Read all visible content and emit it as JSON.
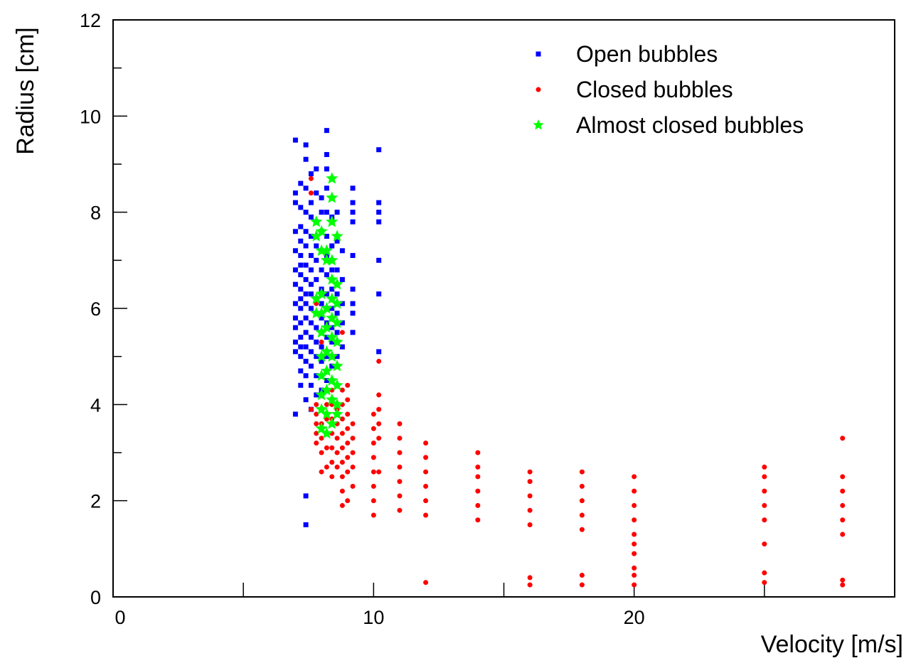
{
  "chart_data": {
    "type": "scatter",
    "title": "",
    "xlabel": "Velocity [m/s]",
    "ylabel": "Radius [cm]",
    "xlim": [
      0,
      30
    ],
    "ylim": [
      0,
      12
    ],
    "x_ticks_major": [
      0,
      10,
      20
    ],
    "x_ticks_minor": [
      5,
      15,
      25
    ],
    "y_ticks_major": [
      0,
      2,
      4,
      6,
      8,
      10,
      12
    ],
    "y_ticks_minor": [
      3,
      5,
      7,
      9,
      11
    ],
    "grid": false,
    "legend_position": "top-right",
    "series": [
      {
        "name": "Open bubbles",
        "marker": "square",
        "color": "#0000ff",
        "x_groups": [
          {
            "x": 7.0,
            "y": [
              3.8,
              5.1,
              5.3,
              5.6,
              5.8,
              6.1,
              6.5,
              6.8,
              7.2,
              7.6,
              8.2,
              8.4,
              9.5
            ]
          },
          {
            "x": 7.2,
            "y": [
              4.4,
              4.7,
              5.0,
              5.2,
              5.4,
              5.7,
              6.0,
              6.2,
              6.4,
              6.7,
              6.9,
              7.1,
              7.4,
              7.7,
              8.1,
              8.6
            ]
          },
          {
            "x": 7.4,
            "y": [
              1.5,
              2.1,
              4.1,
              4.6,
              4.9,
              5.2,
              5.5,
              5.8,
              6.1,
              6.3,
              6.6,
              6.9,
              7.3,
              7.6,
              8.0,
              8.5,
              9.1,
              9.4
            ]
          },
          {
            "x": 7.6,
            "y": [
              3.9,
              4.4,
              4.8,
              5.1,
              5.4,
              5.7,
              6.0,
              6.3,
              6.5,
              6.8,
              7.1,
              7.5,
              7.9,
              8.2,
              8.8
            ]
          },
          {
            "x": 7.8,
            "y": [
              4.2,
              4.6,
              5.0,
              5.3,
              5.6,
              5.9,
              6.2,
              6.6,
              7.0,
              7.3,
              7.8,
              8.4,
              8.9
            ]
          },
          {
            "x": 8.0,
            "y": [
              4.3,
              4.9,
              5.2,
              5.5,
              5.8,
              6.1,
              6.4,
              6.8,
              7.2,
              7.6,
              8.0,
              8.3
            ]
          },
          {
            "x": 8.2,
            "y": [
              4.5,
              5.0,
              5.4,
              5.7,
              6.0,
              6.3,
              6.7,
              7.1,
              7.5,
              8.0,
              8.5,
              8.9,
              9.2,
              9.7
            ]
          },
          {
            "x": 8.4,
            "y": [
              4.8,
              5.3,
              5.6,
              6.0,
              6.4,
              6.8,
              7.3,
              7.9
            ]
          },
          {
            "x": 8.6,
            "y": [
              5.0,
              5.5,
              5.9,
              6.3,
              6.8,
              7.4,
              8.0
            ]
          },
          {
            "x": 8.8,
            "y": [
              5.2,
              5.7,
              6.1,
              6.6,
              7.2
            ]
          },
          {
            "x": 9.2,
            "y": [
              5.5,
              5.9,
              6.1,
              6.4,
              7.1,
              7.8,
              8.0,
              8.2,
              8.5
            ]
          },
          {
            "x": 10.2,
            "y": [
              5.1,
              6.3,
              7.0,
              7.8,
              8.0,
              8.2,
              9.3
            ]
          }
        ]
      },
      {
        "name": "Closed bubbles",
        "marker": "circle",
        "color": "#ff0000",
        "x_groups": [
          {
            "x": 7.6,
            "y": [
              3.9,
              8.4,
              8.7
            ]
          },
          {
            "x": 7.8,
            "y": [
              3.2,
              3.4,
              3.6,
              3.8,
              4.0,
              6.1
            ]
          },
          {
            "x": 8.0,
            "y": [
              2.6,
              3.0,
              3.3,
              3.6,
              3.9,
              4.2,
              5.3
            ]
          },
          {
            "x": 8.2,
            "y": [
              2.7,
              3.1,
              3.4,
              3.7,
              4.0,
              4.3
            ]
          },
          {
            "x": 8.4,
            "y": [
              2.5,
              2.8,
              3.1,
              3.4,
              3.7,
              4.0,
              4.3,
              7.0
            ]
          },
          {
            "x": 8.6,
            "y": [
              2.7,
              3.0,
              3.3,
              3.6,
              3.9
            ]
          },
          {
            "x": 8.8,
            "y": [
              1.9,
              2.2,
              2.5,
              2.8,
              3.1,
              3.4,
              3.7,
              4.0,
              4.3,
              5.5
            ]
          },
          {
            "x": 9.0,
            "y": [
              2.0,
              2.6,
              2.9,
              3.2,
              3.5,
              3.8,
              4.1,
              4.4
            ]
          },
          {
            "x": 9.2,
            "y": [
              2.3,
              2.7,
              3.0,
              3.3,
              3.6
            ]
          },
          {
            "x": 10.0,
            "y": [
              1.7,
              2.0,
              2.3,
              2.6,
              2.9,
              3.2,
              3.5,
              3.8
            ]
          },
          {
            "x": 10.2,
            "y": [
              2.6,
              3.3,
              3.6,
              3.9,
              4.2,
              4.9
            ]
          },
          {
            "x": 11.0,
            "y": [
              1.8,
              2.1,
              2.4,
              2.7,
              3.0,
              3.3,
              3.6
            ]
          },
          {
            "x": 12.0,
            "y": [
              0.3,
              1.7,
              2.0,
              2.3,
              2.6,
              2.9,
              3.2
            ]
          },
          {
            "x": 14.0,
            "y": [
              1.6,
              1.9,
              2.2,
              2.5,
              2.7,
              3.0
            ]
          },
          {
            "x": 16.0,
            "y": [
              0.25,
              0.4,
              1.5,
              1.8,
              2.1,
              2.4,
              2.6
            ]
          },
          {
            "x": 18.0,
            "y": [
              0.25,
              0.45,
              1.4,
              1.7,
              2.0,
              2.3,
              2.6
            ]
          },
          {
            "x": 20.0,
            "y": [
              0.25,
              0.45,
              0.6,
              0.9,
              1.1,
              1.3,
              1.6,
              1.9,
              2.2,
              2.5
            ]
          },
          {
            "x": 25.0,
            "y": [
              0.3,
              0.5,
              1.1,
              1.6,
              1.9,
              2.2,
              2.5,
              2.7
            ]
          },
          {
            "x": 28.0,
            "y": [
              0.25,
              0.35,
              1.3,
              1.6,
              1.9,
              2.2,
              2.5,
              3.3
            ]
          }
        ]
      },
      {
        "name": "Almost closed bubbles",
        "marker": "star",
        "color": "#00ff00",
        "x_groups": [
          {
            "x": 7.8,
            "y": [
              5.9,
              6.2,
              7.5,
              7.8
            ]
          },
          {
            "x": 8.0,
            "y": [
              3.5,
              3.9,
              4.2,
              4.6,
              5.0,
              5.5,
              5.9,
              6.3,
              7.2,
              7.6
            ]
          },
          {
            "x": 8.2,
            "y": [
              3.4,
              3.8,
              4.3,
              4.7,
              5.1,
              5.6,
              6.0,
              7.0,
              7.2
            ]
          },
          {
            "x": 8.4,
            "y": [
              3.6,
              4.1,
              4.5,
              5.0,
              5.4,
              5.8,
              6.2,
              6.6,
              7.0,
              7.8,
              8.3,
              8.7
            ]
          },
          {
            "x": 8.6,
            "y": [
              3.8,
              4.0,
              4.4,
              4.8,
              5.3,
              5.7,
              6.1,
              6.5,
              7.5
            ]
          }
        ]
      }
    ]
  }
}
